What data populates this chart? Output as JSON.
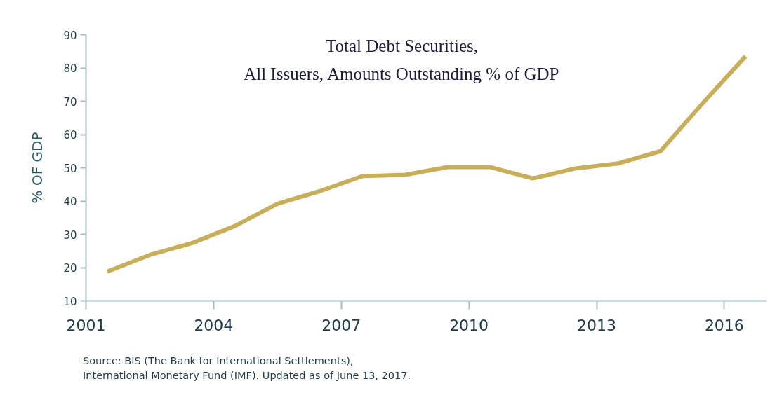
{
  "chart_data": {
    "type": "line",
    "title": "Total Debt Securities,\nAll Issuers, Amounts Outstanding % of GDP",
    "ylabel": "% OF GDP",
    "x": [
      2001.5,
      2002.5,
      2003.5,
      2004.5,
      2005.5,
      2006.5,
      2007.5,
      2008.5,
      2009.5,
      2010.5,
      2011.5,
      2012.5,
      2013.5,
      2014.5,
      2015.5,
      2016.5
    ],
    "series": [
      {
        "color": "#c9ae5a",
        "values": [
          18.8,
          23.8,
          27.4,
          32.5,
          39.2,
          43.0,
          47.5,
          47.9,
          50.2,
          50.2,
          46.8,
          49.8,
          51.3,
          55.0,
          69.5,
          83.5
        ]
      }
    ],
    "xlim": [
      2001,
      2017
    ],
    "xticks": [
      2001,
      2004,
      2007,
      2010,
      2013,
      2016
    ],
    "ylim": [
      10,
      90
    ],
    "yticks": [
      10,
      20,
      30,
      40,
      50,
      60,
      70,
      80,
      90
    ],
    "grid": false,
    "marker": "none",
    "line_style": "solid",
    "annotations": [
      "Source: BIS (The Bank for International Settlements),\nInternational Monetary Fund (IMF). Updated as of June 13, 2017."
    ]
  }
}
